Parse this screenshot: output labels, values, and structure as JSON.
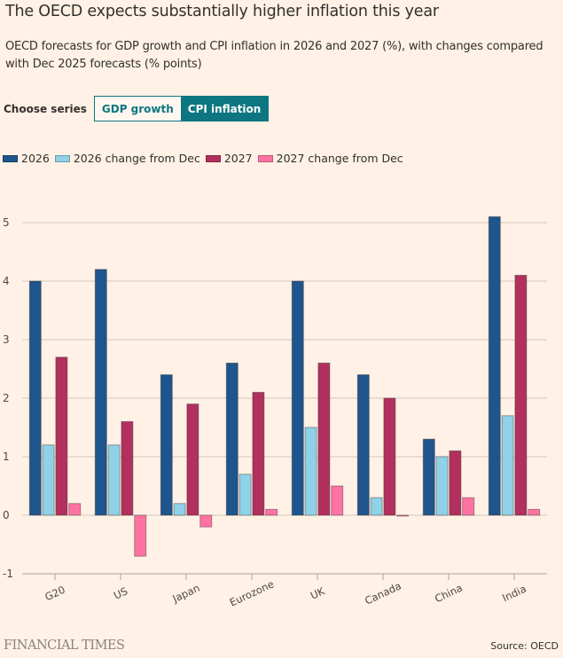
{
  "header": {
    "title": "The OECD expects substantially higher inflation this year",
    "subtitle": "OECD forecasts for GDP growth and CPI inflation in 2026 and 2027 (%), with changes compared with Dec 2025 forecasts (% points)"
  },
  "controls": {
    "label": "Choose series",
    "options": [
      {
        "label": "GDP growth",
        "selected": false
      },
      {
        "label": "CPI inflation",
        "selected": true
      }
    ]
  },
  "footer": {
    "logo": "FINANCIAL TIMES",
    "source": "Source: OECD"
  },
  "chart_data": {
    "type": "bar",
    "title": "The OECD expects substantially higher inflation this year",
    "xlabel": "",
    "ylabel": "",
    "ylim": [
      -1,
      5.3
    ],
    "yticks": [
      -1,
      0,
      1,
      2,
      3,
      4,
      5
    ],
    "grid": true,
    "legend": "top-left",
    "categories": [
      "G20",
      "US",
      "Japan",
      "Eurozone",
      "UK",
      "Canada",
      "China",
      "India"
    ],
    "series": [
      {
        "name": "2026",
        "color": "#1e558c",
        "values": [
          4.0,
          4.2,
          2.4,
          2.6,
          4.0,
          2.4,
          1.3,
          5.1
        ]
      },
      {
        "name": "2026 change from Dec",
        "color": "#8fd1e6",
        "values": [
          1.2,
          1.2,
          0.2,
          0.7,
          1.5,
          0.3,
          1.0,
          1.7
        ]
      },
      {
        "name": "2027",
        "color": "#b1305e",
        "values": [
          2.7,
          1.6,
          1.9,
          2.1,
          2.6,
          2.0,
          1.1,
          4.1
        ]
      },
      {
        "name": "2027 change from Dec",
        "color": "#ff73a3",
        "values": [
          0.2,
          -0.7,
          -0.2,
          0.1,
          0.5,
          0.0,
          0.3,
          0.1
        ]
      }
    ]
  }
}
